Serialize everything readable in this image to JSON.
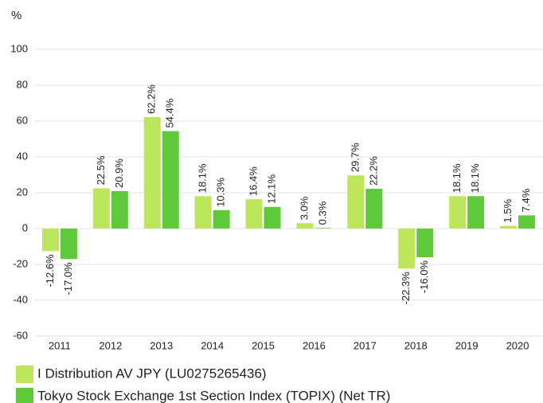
{
  "chart_data": {
    "type": "bar",
    "y_label": "%",
    "categories": [
      "2011",
      "2012",
      "2013",
      "2014",
      "2015",
      "2016",
      "2017",
      "2018",
      "2019",
      "2020"
    ],
    "series": [
      {
        "name": "I Distribution AV JPY (LU0275265436)",
        "color": "#bde65c",
        "values": [
          -12.6,
          22.5,
          62.2,
          18.1,
          16.4,
          3.0,
          29.7,
          -22.3,
          18.1,
          1.5
        ],
        "value_labels": [
          "-12.6%",
          "22.5%",
          "62.2%",
          "18.1%",
          "16.4%",
          "3.0%",
          "29.7%",
          "-22.3%",
          "18.1%",
          "1.5%"
        ]
      },
      {
        "name": "Tokyo Stock Exchange 1st Section Index (TOPIX) (Net TR)",
        "color": "#5dc93b",
        "values": [
          -17.0,
          20.9,
          54.4,
          10.3,
          12.1,
          0.3,
          22.2,
          -16.0,
          18.1,
          7.4
        ],
        "value_labels": [
          "-17.0%",
          "20.9%",
          "54.4%",
          "10.3%",
          "12.1%",
          "0.3%",
          "22.2%",
          "-16.0%",
          "18.1%",
          "7.4%"
        ]
      }
    ],
    "ylim": [
      -60,
      100
    ],
    "yticks": [
      -60,
      -40,
      -20,
      0,
      20,
      40,
      60,
      80,
      100
    ],
    "grid": true
  }
}
